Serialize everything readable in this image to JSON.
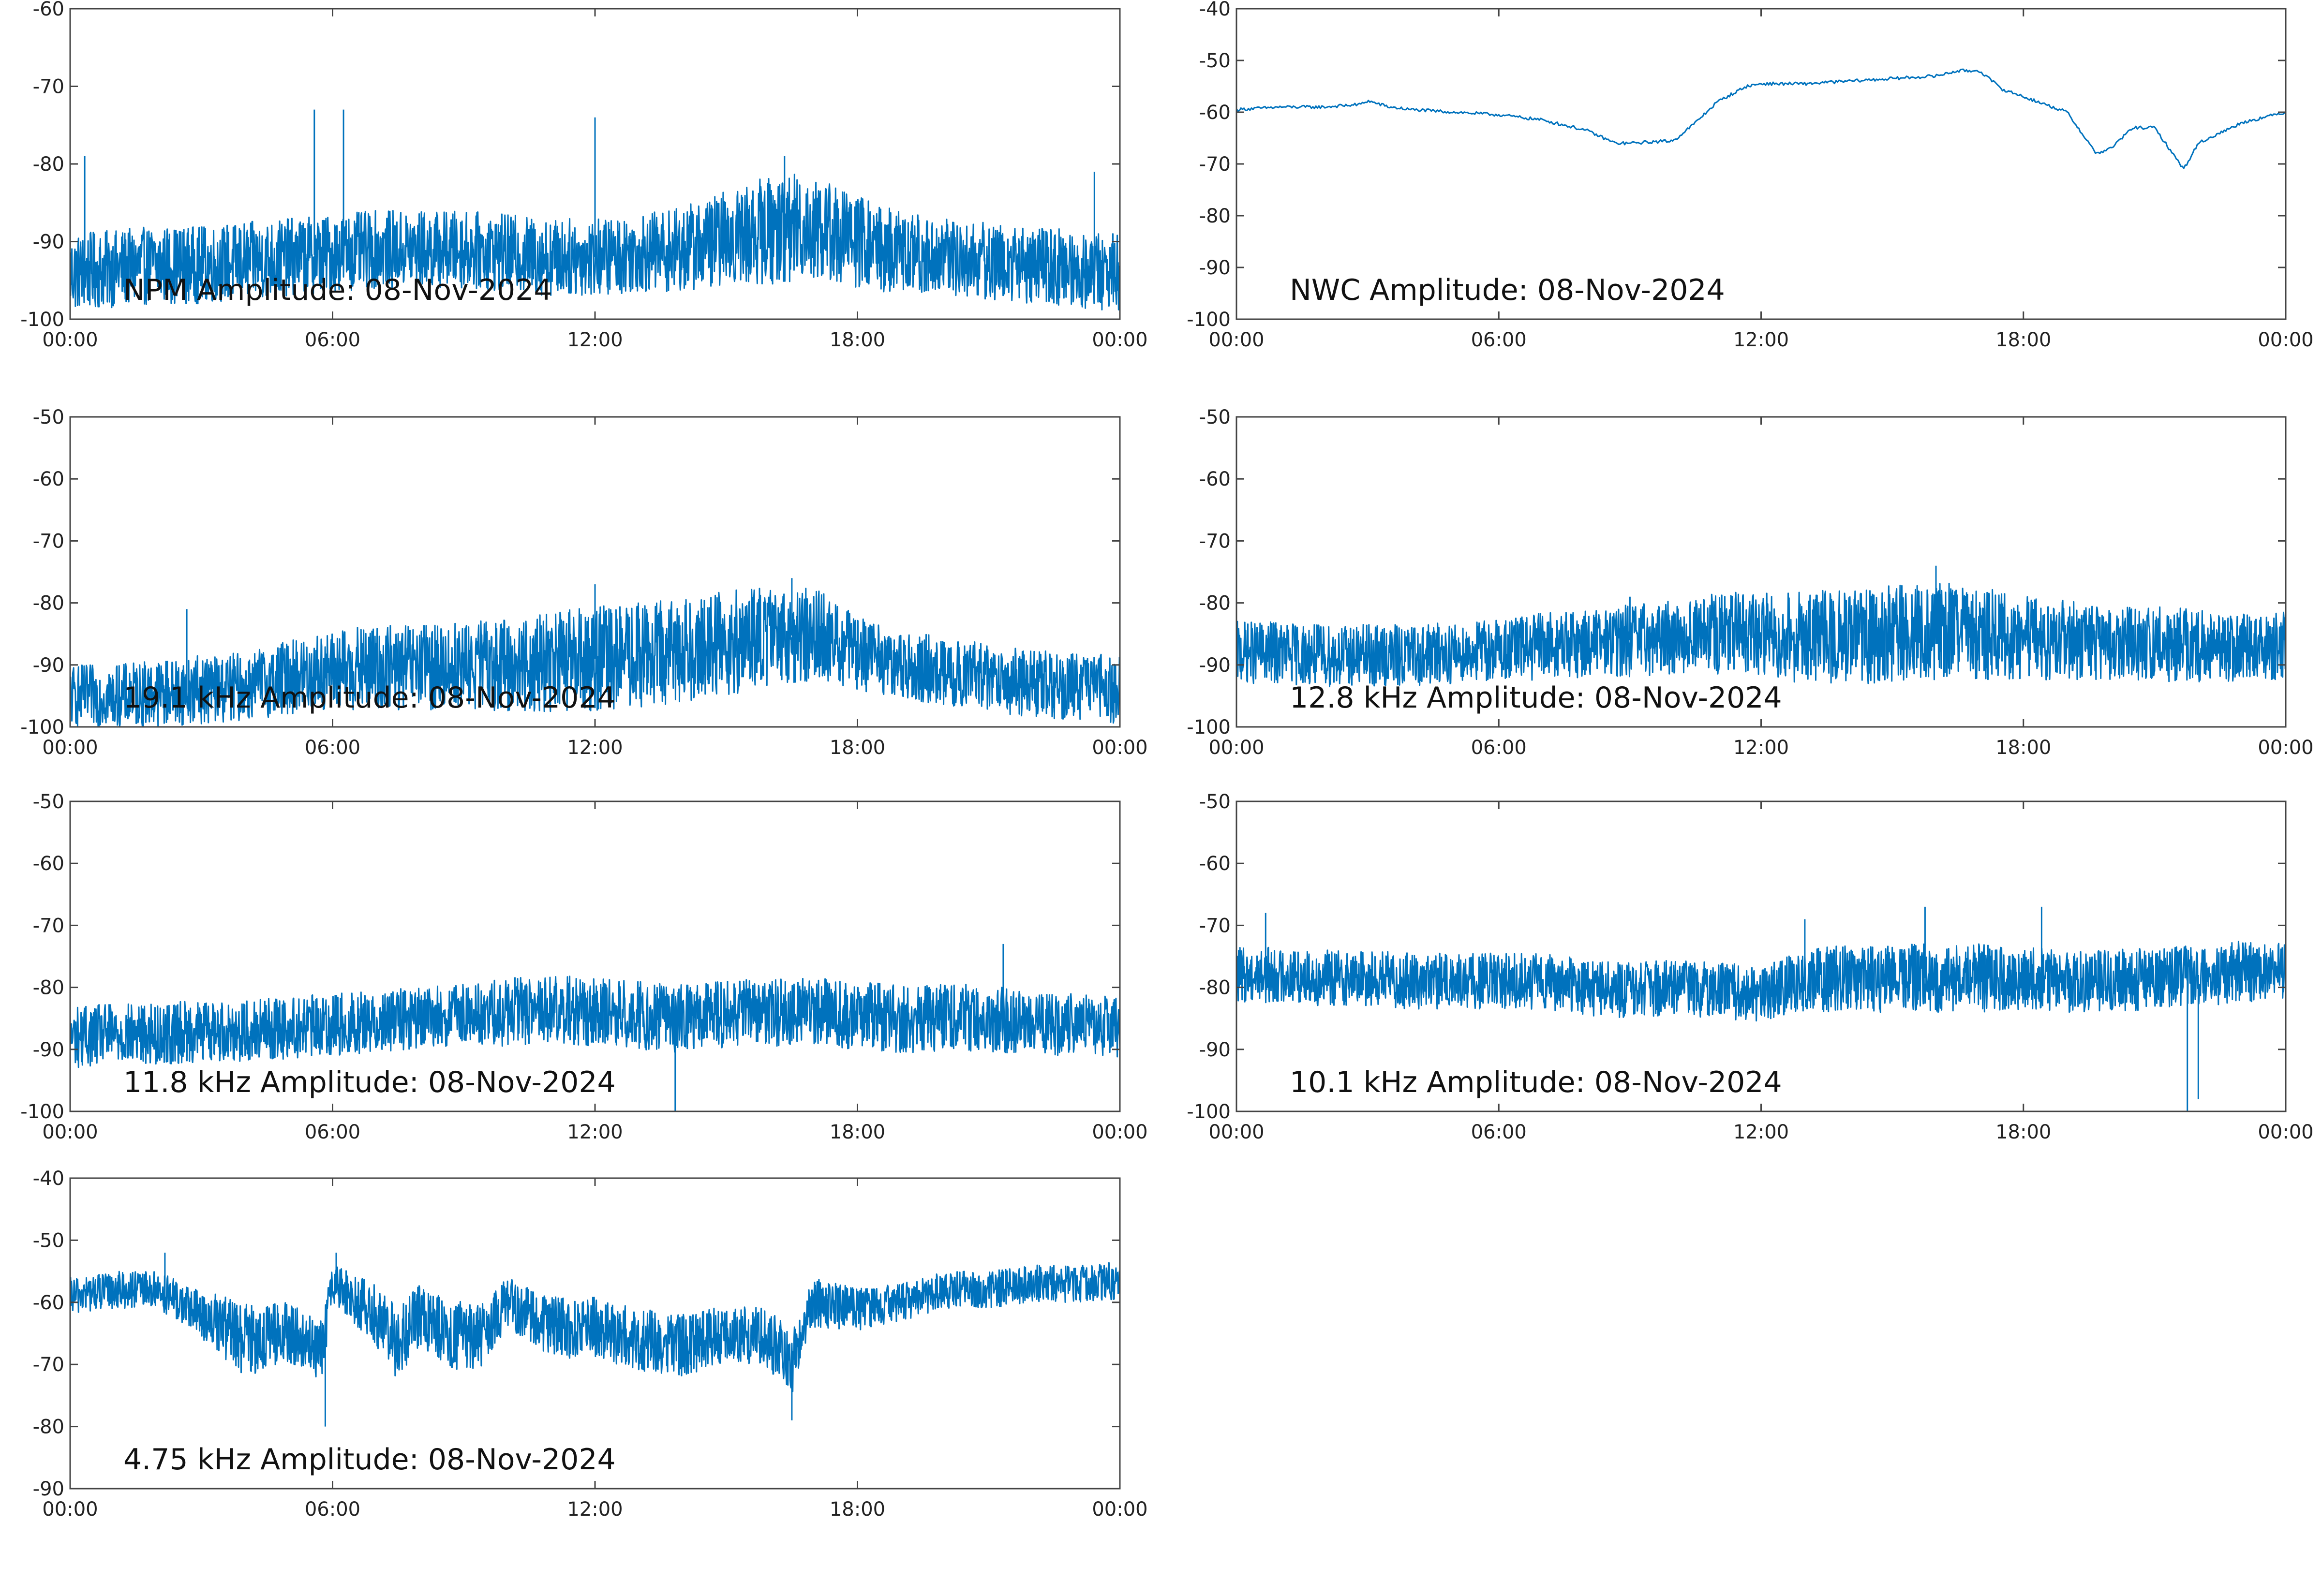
{
  "chart_data": [
    {
      "type": "line",
      "label": "NPM Amplitude: 08-Nov-2024",
      "xlim": [
        "00:00",
        "00:00"
      ],
      "x_ticks": [
        "00:00",
        "06:00",
        "12:00",
        "18:00",
        "00:00"
      ],
      "ylim": [
        -100,
        -60
      ],
      "y_ticks": [
        -60,
        -70,
        -80,
        -90,
        -100
      ],
      "color": "#0072bd",
      "series": [
        {
          "x": [
            "00:00",
            "01:00",
            "02:00",
            "03:00",
            "04:00",
            "05:00",
            "06:00",
            "07:00",
            "08:00",
            "09:00",
            "10:00",
            "11:00",
            "12:00",
            "13:00",
            "14:00",
            "15:00",
            "16:00",
            "17:00",
            "18:00",
            "19:00",
            "20:00",
            "21:00",
            "22:00",
            "23:00",
            "24:00"
          ],
          "y": [
            -94,
            -93.5,
            -93,
            -93,
            -92.5,
            -92,
            -91.5,
            -91,
            -91,
            -91,
            -91.5,
            -92,
            -92,
            -91.5,
            -91,
            -89.5,
            -88.5,
            -88,
            -90,
            -91.5,
            -92,
            -92.5,
            -93,
            -93.5,
            -94
          ],
          "spread": [
            5,
            5,
            5,
            5,
            5,
            5,
            5,
            5,
            5,
            5,
            5,
            5,
            5,
            5,
            5.5,
            6,
            7,
            7,
            6,
            5.5,
            5,
            5,
            5,
            5,
            5
          ],
          "spikes": [
            {
              "x": "00:20",
              "y": -79
            },
            {
              "x": "05:35",
              "y": -73
            },
            {
              "x": "06:15",
              "y": -73
            },
            {
              "x": "12:00",
              "y": -74
            },
            {
              "x": "16:20",
              "y": -79
            },
            {
              "x": "23:25",
              "y": -81
            }
          ]
        }
      ]
    },
    {
      "type": "line",
      "label": "NWC Amplitude: 08-Nov-2024",
      "xlim": [
        "00:00",
        "00:00"
      ],
      "x_ticks": [
        "00:00",
        "06:00",
        "12:00",
        "18:00",
        "00:00"
      ],
      "ylim": [
        -100,
        -40
      ],
      "y_ticks": [
        -40,
        -50,
        -60,
        -70,
        -80,
        -90,
        -100
      ],
      "color": "#0072bd",
      "series": [
        {
          "x": [
            "00:00",
            "01:00",
            "02:00",
            "02:50",
            "03:00",
            "03:30",
            "04:00",
            "05:00",
            "06:00",
            "07:00",
            "08:00",
            "08:40",
            "09:00",
            "10:00",
            "10:30",
            "11:00",
            "11:40",
            "12:00",
            "13:00",
            "14:00",
            "15:00",
            "16:00",
            "16:30",
            "17:00",
            "17:30",
            "18:00",
            "19:00",
            "19:40",
            "20:00",
            "20:30",
            "21:00",
            "21:20",
            "21:40",
            "22:00",
            "22:30",
            "23:00",
            "24:00"
          ],
          "y": [
            -59.5,
            -59,
            -59,
            -58.5,
            -57.8,
            -59,
            -59.5,
            -60,
            -60.5,
            -61.5,
            -63.5,
            -66,
            -66,
            -65.5,
            -62,
            -58,
            -55,
            -54.5,
            -54.5,
            -54,
            -53.5,
            -53,
            -52,
            -52,
            -55.5,
            -57,
            -60,
            -68,
            -67,
            -63,
            -63,
            -67,
            -71,
            -66,
            -64,
            -62,
            -60
          ]
        }
      ]
    },
    {
      "type": "line",
      "label": "19.1 kHz Amplitude: 08-Nov-2024",
      "xlim": [
        "00:00",
        "00:00"
      ],
      "x_ticks": [
        "00:00",
        "06:00",
        "12:00",
        "18:00",
        "00:00"
      ],
      "ylim": [
        -100,
        -50
      ],
      "y_ticks": [
        -50,
        -60,
        -70,
        -80,
        -90,
        -100
      ],
      "color": "#0072bd",
      "series": [
        {
          "x": [
            "00:00",
            "01:00",
            "02:00",
            "03:00",
            "04:00",
            "05:00",
            "06:00",
            "07:00",
            "08:00",
            "09:00",
            "10:00",
            "11:00",
            "12:00",
            "13:00",
            "14:00",
            "15:00",
            "16:00",
            "17:00",
            "18:00",
            "19:00",
            "20:00",
            "21:00",
            "22:00",
            "23:00",
            "24:00"
          ],
          "y": [
            -95,
            -95,
            -94.5,
            -94,
            -93.5,
            -92,
            -91,
            -90.5,
            -90.5,
            -90,
            -90,
            -89.5,
            -89,
            -88.5,
            -87.5,
            -86.5,
            -85.5,
            -85,
            -88,
            -90,
            -91,
            -92,
            -93,
            -93.5,
            -94
          ],
          "spread": [
            5,
            5,
            5.5,
            5.5,
            5.5,
            6,
            6.5,
            7,
            7,
            7,
            7.5,
            8,
            8.5,
            8.5,
            8.5,
            8.5,
            8,
            7.5,
            6,
            5.5,
            5.5,
            5.5,
            5.5,
            5.5,
            5.5
          ],
          "spikes": [
            {
              "x": "02:40",
              "y": -81
            },
            {
              "x": "12:00",
              "y": -77
            },
            {
              "x": "16:30",
              "y": -76
            }
          ]
        }
      ]
    },
    {
      "type": "line",
      "label": "12.8 kHz Amplitude: 08-Nov-2024",
      "xlim": [
        "00:00",
        "00:00"
      ],
      "x_ticks": [
        "00:00",
        "06:00",
        "12:00",
        "18:00",
        "00:00"
      ],
      "ylim": [
        -100,
        -50
      ],
      "y_ticks": [
        -50,
        -60,
        -70,
        -80,
        -90,
        -100
      ],
      "color": "#0072bd",
      "series": [
        {
          "x": [
            "00:00",
            "01:00",
            "02:00",
            "03:00",
            "04:00",
            "05:00",
            "06:00",
            "07:00",
            "08:00",
            "09:00",
            "10:00",
            "11:00",
            "12:00",
            "13:00",
            "14:00",
            "15:00",
            "16:00",
            "17:00",
            "18:00",
            "19:00",
            "20:00",
            "21:00",
            "22:00",
            "23:00",
            "24:00"
          ],
          "y": [
            -88,
            -88,
            -88.5,
            -88.5,
            -88.5,
            -88,
            -87.5,
            -87,
            -86.5,
            -86,
            -85.5,
            -85,
            -85,
            -85.5,
            -85.5,
            -85,
            -84.5,
            -85,
            -85.5,
            -86,
            -86.5,
            -86.5,
            -87,
            -87,
            -87
          ],
          "spread": [
            5,
            5,
            5,
            5,
            5,
            5,
            5,
            5.5,
            5.5,
            6,
            6,
            6.5,
            7,
            7.5,
            7.5,
            8,
            8,
            7.5,
            7,
            6.5,
            6,
            6,
            6,
            5.5,
            5.5
          ],
          "spikes": [
            {
              "x": "16:00",
              "y": -74
            },
            {
              "x": "09:00",
              "y": -79
            }
          ]
        }
      ]
    },
    {
      "type": "line",
      "label": "11.8 kHz Amplitude: 08-Nov-2024",
      "xlim": [
        "00:00",
        "00:00"
      ],
      "x_ticks": [
        "00:00",
        "06:00",
        "12:00",
        "18:00",
        "00:00"
      ],
      "ylim": [
        -100,
        -50
      ],
      "y_ticks": [
        -50,
        -60,
        -70,
        -80,
        -90,
        -100
      ],
      "color": "#0072bd",
      "series": [
        {
          "x": [
            "00:00",
            "01:00",
            "02:00",
            "03:00",
            "04:00",
            "05:00",
            "06:00",
            "07:00",
            "08:00",
            "09:00",
            "10:00",
            "11:00",
            "12:00",
            "13:00",
            "14:00",
            "15:00",
            "16:00",
            "17:00",
            "18:00",
            "19:00",
            "20:00",
            "21:00",
            "22:00",
            "23:00",
            "24:00"
          ],
          "y": [
            -88,
            -87.5,
            -87.5,
            -87,
            -87,
            -86.5,
            -86,
            -85.5,
            -85,
            -84.5,
            -84,
            -83.5,
            -84,
            -84.5,
            -85,
            -84.5,
            -84,
            -84,
            -84.5,
            -85,
            -85,
            -85,
            -86,
            -86,
            -86.5
          ],
          "spread": [
            5,
            5,
            5,
            5,
            5,
            5,
            5,
            5,
            5,
            5,
            5.5,
            5.5,
            5.5,
            5.5,
            5.5,
            5.5,
            5.5,
            5.5,
            5.5,
            5.5,
            5.5,
            5.5,
            5,
            5,
            5
          ],
          "spikes": [
            {
              "x": "21:20",
              "y": -73
            },
            {
              "x": "13:50",
              "y": -100
            }
          ]
        }
      ]
    },
    {
      "type": "line",
      "label": "10.1 kHz Amplitude: 08-Nov-2024",
      "xlim": [
        "00:00",
        "00:00"
      ],
      "x_ticks": [
        "00:00",
        "06:00",
        "12:00",
        "18:00",
        "00:00"
      ],
      "ylim": [
        -100,
        -50
      ],
      "y_ticks": [
        -50,
        -60,
        -70,
        -80,
        -90,
        -100
      ],
      "color": "#0072bd",
      "series": [
        {
          "x": [
            "00:00",
            "01:00",
            "02:00",
            "03:00",
            "04:00",
            "05:00",
            "06:00",
            "07:00",
            "08:00",
            "09:00",
            "10:00",
            "11:00",
            "12:00",
            "13:00",
            "14:00",
            "15:00",
            "16:00",
            "17:00",
            "18:00",
            "19:00",
            "20:00",
            "21:00",
            "22:00",
            "23:00",
            "24:00"
          ],
          "y": [
            -78,
            -78,
            -78.5,
            -78.5,
            -79,
            -79,
            -79,
            -79,
            -80,
            -80.5,
            -80,
            -80.5,
            -81,
            -79,
            -78.5,
            -78.5,
            -78.5,
            -78.5,
            -78.5,
            -79,
            -79,
            -78.5,
            -78,
            -77.5,
            -77.5
          ],
          "spread": [
            4.5,
            4.5,
            4.5,
            4.5,
            4.5,
            4.5,
            4.5,
            4.5,
            4.5,
            4.5,
            4.5,
            4.5,
            4.5,
            5,
            5.5,
            5.5,
            5.5,
            5.5,
            5,
            5,
            5,
            5,
            5,
            5,
            4.5
          ],
          "spikes": [
            {
              "x": "13:00",
              "y": -69
            },
            {
              "x": "15:45",
              "y": -67
            },
            {
              "x": "18:25",
              "y": -67
            },
            {
              "x": "21:45",
              "y": -100
            },
            {
              "x": "22:00",
              "y": -98
            },
            {
              "x": "00:40",
              "y": -68
            }
          ]
        }
      ]
    },
    {
      "type": "line",
      "label": "4.75 kHz Amplitude: 08-Nov-2024",
      "xlim": [
        "00:00",
        "00:00"
      ],
      "x_ticks": [
        "00:00",
        "06:00",
        "12:00",
        "18:00",
        "00:00"
      ],
      "ylim": [
        -90,
        -40
      ],
      "y_ticks": [
        -40,
        -50,
        -60,
        -70,
        -80,
        -90
      ],
      "color": "#0072bd",
      "series": [
        {
          "x": [
            "00:00",
            "01:00",
            "02:00",
            "03:00",
            "04:00",
            "05:00",
            "05:45",
            "06:00",
            "07:00",
            "07:30",
            "08:00",
            "09:00",
            "09:30",
            "10:00",
            "11:00",
            "12:00",
            "13:00",
            "14:00",
            "15:00",
            "16:00",
            "16:30",
            "17:00",
            "18:00",
            "19:00",
            "20:00",
            "21:00",
            "22:00",
            "23:00",
            "24:00"
          ],
          "y": [
            -59,
            -58,
            -58,
            -62,
            -66,
            -65,
            -68,
            -57,
            -62,
            -67,
            -62,
            -66,
            -65,
            -60,
            -64,
            -64,
            -66,
            -67,
            -65,
            -66,
            -70,
            -60,
            -61,
            -60,
            -58,
            -58,
            -57,
            -57,
            -56.5
          ],
          "spread": [
            3,
            3,
            3,
            4,
            6,
            5,
            5,
            3,
            5,
            6,
            5,
            6,
            5,
            4,
            5,
            5,
            5,
            5,
            4.5,
            5,
            5,
            4,
            3.5,
            3,
            3,
            3,
            3,
            3,
            3
          ],
          "spikes": [
            {
              "x": "05:50",
              "y": -80
            },
            {
              "x": "16:30",
              "y": -79
            },
            {
              "x": "02:10",
              "y": -52
            },
            {
              "x": "06:05",
              "y": -52
            }
          ]
        }
      ]
    }
  ]
}
